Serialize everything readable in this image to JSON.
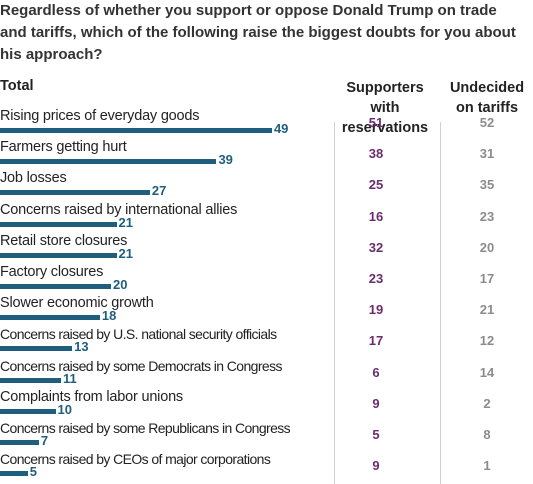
{
  "question": "Regardless of whether you support or oppose Donald Trump on trade and tariffs, which of the following raise the biggest doubts for you about his approach?",
  "columns": {
    "total": "Total",
    "supporters": "Supporters with reservations",
    "undecided": "Undecided on tariffs"
  },
  "colors": {
    "bar": "#1f5f7d",
    "supporters": "#6b2c6e",
    "undecided": "#8c8c8c"
  },
  "chart_data": {
    "type": "bar",
    "categories": [
      "Rising prices of everyday goods",
      "Farmers getting hurt",
      "Job losses",
      "Concerns raised by international allies",
      "Retail store closures",
      "Factory closures",
      "Slower economic growth",
      "Concerns raised by U.S. national security officials",
      "Concerns raised by some Democrats in Congress",
      "Complaints from labor unions",
      "Concerns raised by some Republicans in Congress",
      "Concerns raised by CEOs of major corporations"
    ],
    "series": [
      {
        "name": "Total",
        "values": [
          49,
          39,
          27,
          21,
          21,
          20,
          18,
          13,
          11,
          10,
          7,
          5
        ]
      },
      {
        "name": "Supporters with reservations",
        "values": [
          51,
          38,
          25,
          16,
          32,
          23,
          19,
          17,
          6,
          9,
          5,
          9
        ]
      },
      {
        "name": "Undecided on tariffs",
        "values": [
          52,
          31,
          35,
          23,
          20,
          17,
          21,
          12,
          14,
          2,
          8,
          1
        ]
      }
    ]
  }
}
